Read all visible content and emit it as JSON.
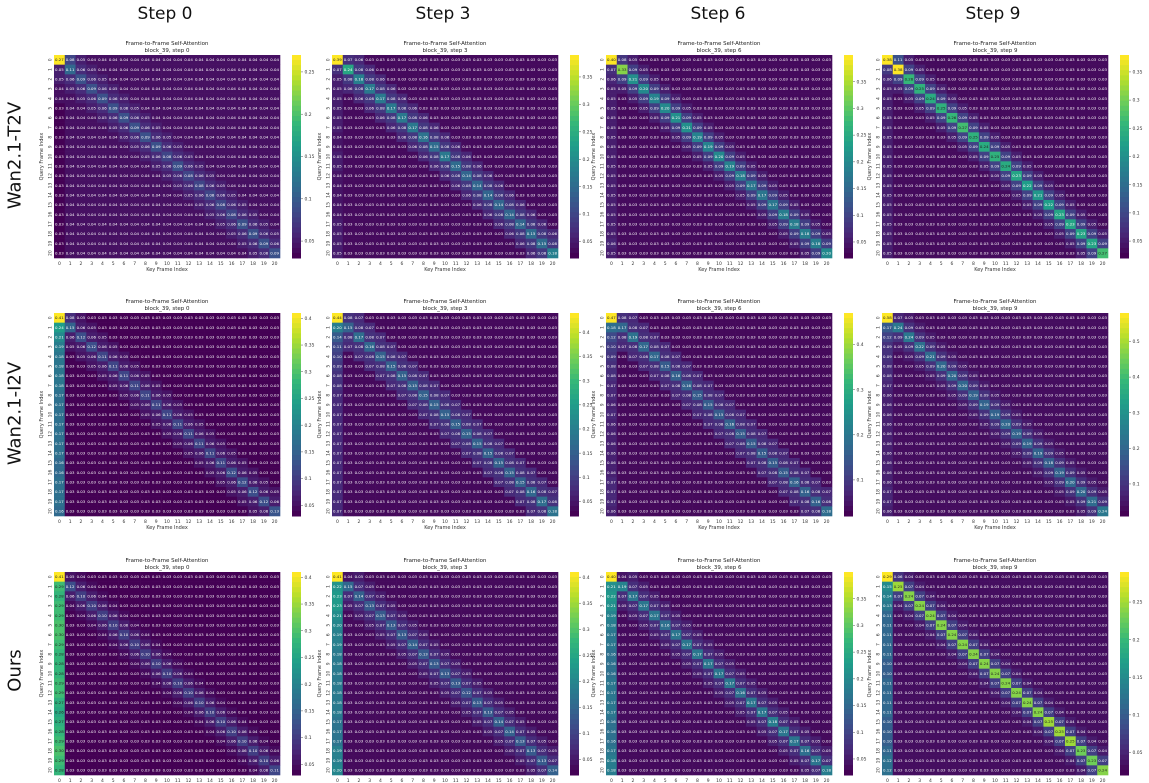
{
  "columns": [
    "Step 0",
    "Step 3",
    "Step 6",
    "Step 9"
  ],
  "rows": [
    "Wan2.1-T2V",
    "Wan2.1-I2V",
    "Ours"
  ],
  "chart_data": {
    "type": "heatmap",
    "title": "Frame-to-Frame Self-Attention",
    "xlabel": "Key Frame Index",
    "ylabel": "Query Frame Index",
    "ticks": [
      0,
      1,
      2,
      3,
      4,
      5,
      6,
      7,
      8,
      9,
      10,
      11,
      12,
      13,
      14,
      15,
      16,
      17,
      18,
      19,
      20
    ],
    "colormap": "viridis",
    "note": "approximate values: corner=(0,0); col0 = column 0 for rows 1-20; diag = diagonal rows 1-20; n1/n2 = 1st/2nd off-diagonal; bg = background",
    "panels": [
      {
        "row": 0,
        "col": 0,
        "subtitle": "block_39, step 0",
        "corner": 0.27,
        "r0n1": 0.08,
        "n1": 0.06,
        "n2": 0.05,
        "bg": 0.04,
        "vmin": 0.03,
        "vmax": 0.27,
        "cbar_ticks": [
          0.05,
          0.1,
          0.15,
          0.2,
          0.25
        ],
        "col0": [
          0.05,
          0.05,
          0.04,
          0.04,
          0.03,
          0.03,
          0.03,
          0.03,
          0.03,
          0.03,
          0.03,
          0.03,
          0.03,
          0.03,
          0.03,
          0.03,
          0.03,
          0.03,
          0.03,
          0.03
        ],
        "diag": [
          0.11,
          0.09,
          0.09,
          0.09,
          0.09,
          0.09,
          0.09,
          0.09,
          0.09,
          0.08,
          0.09,
          0.08,
          0.08,
          0.08,
          0.08,
          0.08,
          0.09,
          0.09,
          0.09,
          0.09
        ]
      },
      {
        "row": 0,
        "col": 1,
        "subtitle": "block_39, step 3",
        "corner": 0.39,
        "r0n1": 0.07,
        "n1": 0.08,
        "n2": 0.06,
        "bg": 0.03,
        "vmin": 0.02,
        "vmax": 0.39,
        "cbar_ticks": [
          0.05,
          0.1,
          0.15,
          0.2,
          0.25,
          0.3,
          0.35
        ],
        "col0": [
          0.07,
          0.05,
          0.05,
          0.05,
          0.05,
          0.05,
          0.05,
          0.04,
          0.04,
          0.05,
          0.05,
          0.04,
          0.04,
          0.04,
          0.04,
          0.04,
          0.05,
          0.05,
          0.05,
          0.05
        ],
        "diag": [
          0.24,
          0.18,
          0.17,
          0.17,
          0.17,
          0.17,
          0.17,
          0.16,
          0.15,
          0.17,
          0.15,
          0.14,
          0.14,
          0.14,
          0.14,
          0.14,
          0.14,
          0.15,
          0.15,
          0.18
        ]
      },
      {
        "row": 0,
        "col": 2,
        "subtitle": "block_39, step 6",
        "corner": 0.4,
        "r0n1": 0.08,
        "n1": 0.09,
        "n2": 0.05,
        "bg": 0.03,
        "vmin": 0.02,
        "vmax": 0.4,
        "cbar_ticks": [
          0.05,
          0.1,
          0.15,
          0.2,
          0.25,
          0.3,
          0.35
        ],
        "col0": [
          0.07,
          0.06,
          0.05,
          0.05,
          0.05,
          0.05,
          0.05,
          0.05,
          0.05,
          0.05,
          0.05,
          0.05,
          0.05,
          0.05,
          0.05,
          0.05,
          0.05,
          0.05,
          0.06,
          0.05
        ],
        "diag": [
          0.33,
          0.21,
          0.2,
          0.19,
          0.2,
          0.21,
          0.21,
          0.19,
          0.19,
          0.2,
          0.19,
          0.18,
          0.17,
          0.17,
          0.17,
          0.18,
          0.18,
          0.18,
          0.18,
          0.2
        ]
      },
      {
        "row": 0,
        "col": 3,
        "subtitle": "block_39, step 9",
        "corner": 0.38,
        "r0n1": 0.11,
        "n1": 0.09,
        "n2": 0.05,
        "bg": 0.03,
        "vmin": 0.02,
        "vmax": 0.38,
        "cbar_ticks": [
          0.05,
          0.1,
          0.15,
          0.2,
          0.25,
          0.3,
          0.35
        ],
        "col0": [
          0.08,
          0.06,
          0.05,
          0.05,
          0.05,
          0.05,
          0.05,
          0.05,
          0.05,
          0.05,
          0.05,
          0.05,
          0.05,
          0.05,
          0.05,
          0.05,
          0.05,
          0.05,
          0.05,
          0.05
        ],
        "diag": [
          0.38,
          0.26,
          0.25,
          0.24,
          0.25,
          0.26,
          0.27,
          0.25,
          0.24,
          0.25,
          0.24,
          0.23,
          0.22,
          0.21,
          0.22,
          0.23,
          0.23,
          0.23,
          0.23,
          0.27
        ]
      },
      {
        "row": 1,
        "col": 0,
        "subtitle": "block_39, step 0",
        "corner": 0.41,
        "r0n1": 0.08,
        "n1": 0.06,
        "n2": 0.05,
        "bg": 0.03,
        "vmin": 0.03,
        "vmax": 0.41,
        "cbar_ticks": [
          0.05,
          0.1,
          0.15,
          0.2,
          0.25,
          0.3,
          0.35,
          0.4
        ],
        "col0": [
          0.24,
          0.21,
          0.19,
          0.18,
          0.18,
          0.18,
          0.18,
          0.17,
          0.17,
          0.17,
          0.17,
          0.17,
          0.17,
          0.17,
          0.16,
          0.16,
          0.17,
          0.17,
          0.17,
          0.16
        ],
        "diag": [
          0.15,
          0.12,
          0.12,
          0.11,
          0.11,
          0.11,
          0.11,
          0.11,
          0.11,
          0.11,
          0.11,
          0.11,
          0.11,
          0.11,
          0.11,
          0.12,
          0.12,
          0.12,
          0.12,
          0.13
        ]
      },
      {
        "row": 1,
        "col": 1,
        "subtitle": "block_39, step 3",
        "corner": 0.44,
        "r0n1": 0.08,
        "n1": 0.08,
        "n2": 0.07,
        "bg": 0.03,
        "vmin": 0.02,
        "vmax": 0.44,
        "cbar_ticks": [
          0.05,
          0.1,
          0.15,
          0.2,
          0.25,
          0.3,
          0.35,
          0.4
        ],
        "col0": [
          0.2,
          0.14,
          0.11,
          0.1,
          0.09,
          0.08,
          0.08,
          0.07,
          0.07,
          0.07,
          0.07,
          0.07,
          0.07,
          0.07,
          0.07,
          0.07,
          0.07,
          0.07,
          0.07,
          0.07
        ],
        "diag": [
          0.15,
          0.17,
          0.16,
          0.15,
          0.15,
          0.15,
          0.15,
          0.15,
          0.15,
          0.15,
          0.15,
          0.15,
          0.15,
          0.15,
          0.15,
          0.15,
          0.15,
          0.16,
          0.17,
          0.18
        ]
      },
      {
        "row": 1,
        "col": 2,
        "subtitle": "block_39, step 6",
        "corner": 0.47,
        "r0n1": 0.08,
        "n1": 0.08,
        "n2": 0.07,
        "bg": 0.03,
        "vmin": 0.02,
        "vmax": 0.47,
        "cbar_ticks": [
          0.1,
          0.2,
          0.3,
          0.4
        ],
        "col0": [
          0.18,
          0.12,
          0.1,
          0.09,
          0.08,
          0.08,
          0.07,
          0.07,
          0.06,
          0.07,
          0.06,
          0.06,
          0.06,
          0.06,
          0.06,
          0.06,
          0.07,
          0.07,
          0.07,
          0.06
        ],
        "diag": [
          0.17,
          0.19,
          0.17,
          0.17,
          0.15,
          0.16,
          0.16,
          0.15,
          0.15,
          0.15,
          0.16,
          0.15,
          0.15,
          0.15,
          0.15,
          0.15,
          0.16,
          0.16,
          0.16,
          0.18
        ]
      },
      {
        "row": 1,
        "col": 3,
        "subtitle": "block_39, step 9",
        "corner": 0.58,
        "r0n1": 0.07,
        "n1": 0.09,
        "n2": 0.05,
        "bg": 0.03,
        "vmin": 0.01,
        "vmax": 0.58,
        "cbar_ticks": [
          0.1,
          0.2,
          0.3,
          0.4,
          0.5
        ],
        "col0": [
          0.17,
          0.12,
          0.09,
          0.09,
          0.08,
          0.08,
          0.07,
          0.06,
          0.06,
          0.06,
          0.06,
          0.06,
          0.06,
          0.06,
          0.06,
          0.06,
          0.06,
          0.07,
          0.07,
          0.06
        ],
        "diag": [
          0.24,
          0.24,
          0.22,
          0.21,
          0.2,
          0.2,
          0.2,
          0.19,
          0.19,
          0.19,
          0.2,
          0.19,
          0.19,
          0.19,
          0.18,
          0.19,
          0.2,
          0.2,
          0.21,
          0.24
        ]
      },
      {
        "row": 2,
        "col": 0,
        "subtitle": "block_39, step 0",
        "corner": 0.41,
        "r0n1": 0.05,
        "n1": 0.06,
        "n2": 0.04,
        "bg": 0.03,
        "vmin": 0.03,
        "vmax": 0.41,
        "cbar_ticks": [
          0.05,
          0.1,
          0.15,
          0.2,
          0.25,
          0.3,
          0.35,
          0.4
        ],
        "col0": [
          0.29,
          0.28,
          0.29,
          0.29,
          0.3,
          0.3,
          0.29,
          0.28,
          0.28,
          0.28,
          0.29,
          0.29,
          0.27,
          0.26,
          0.27,
          0.28,
          0.29,
          0.3,
          0.29,
          0.28
        ],
        "diag": [
          0.12,
          0.1,
          0.1,
          0.1,
          0.1,
          0.1,
          0.1,
          0.1,
          0.1,
          0.1,
          0.1,
          0.1,
          0.1,
          0.1,
          0.1,
          0.1,
          0.1,
          0.1,
          0.1,
          0.11
        ]
      },
      {
        "row": 2,
        "col": 1,
        "subtitle": "block_39, step 3",
        "corner": 0.41,
        "r0n1": 0.04,
        "n1": 0.07,
        "n2": 0.05,
        "bg": 0.03,
        "vmin": 0.02,
        "vmax": 0.41,
        "cbar_ticks": [
          0.05,
          0.1,
          0.15,
          0.2,
          0.25,
          0.3,
          0.35,
          0.4
        ],
        "col0": [
          0.22,
          0.23,
          0.23,
          0.21,
          0.2,
          0.19,
          0.19,
          0.18,
          0.18,
          0.18,
          0.18,
          0.18,
          0.18,
          0.18,
          0.17,
          0.17,
          0.17,
          0.19,
          0.19,
          0.2
        ],
        "diag": [
          0.15,
          0.14,
          0.13,
          0.13,
          0.13,
          0.13,
          0.14,
          0.13,
          0.13,
          0.13,
          0.13,
          0.12,
          0.13,
          0.13,
          0.14,
          0.14,
          0.13,
          0.13,
          0.13,
          0.14
        ]
      },
      {
        "row": 2,
        "col": 2,
        "subtitle": "block_39, step 6",
        "corner": 0.4,
        "r0n1": 0.04,
        "n1": 0.07,
        "n2": 0.05,
        "bg": 0.03,
        "vmin": 0.02,
        "vmax": 0.4,
        "cbar_ticks": [
          0.05,
          0.1,
          0.15,
          0.2,
          0.25,
          0.3,
          0.35
        ],
        "col0": [
          0.21,
          0.22,
          0.21,
          0.19,
          0.18,
          0.17,
          0.17,
          0.16,
          0.16,
          0.16,
          0.17,
          0.17,
          0.17,
          0.17,
          0.16,
          0.16,
          0.16,
          0.17,
          0.18,
          0.18
        ],
        "diag": [
          0.19,
          0.17,
          0.17,
          0.17,
          0.16,
          0.17,
          0.17,
          0.17,
          0.17,
          0.17,
          0.17,
          0.16,
          0.17,
          0.17,
          0.18,
          0.17,
          0.17,
          0.16,
          0.17,
          0.18
        ]
      },
      {
        "row": 2,
        "col": 3,
        "subtitle": "block_39, step 9",
        "corner": 0.29,
        "r0n1": 0.06,
        "n1": 0.07,
        "n2": 0.04,
        "bg": 0.03,
        "vmin": 0.02,
        "vmax": 0.29,
        "cbar_ticks": [
          0.05,
          0.1,
          0.15,
          0.2,
          0.25
        ],
        "col0": [
          0.15,
          0.14,
          0.13,
          0.11,
          0.11,
          0.11,
          0.11,
          0.11,
          0.1,
          0.1,
          0.11,
          0.11,
          0.11,
          0.11,
          0.1,
          0.1,
          0.1,
          0.11,
          0.12,
          0.12
        ],
        "diag": [
          0.25,
          0.24,
          0.24,
          0.24,
          0.24,
          0.24,
          0.24,
          0.24,
          0.24,
          0.24,
          0.24,
          0.24,
          0.24,
          0.24,
          0.25,
          0.25,
          0.25,
          0.23,
          0.23,
          0.24
        ]
      }
    ]
  }
}
